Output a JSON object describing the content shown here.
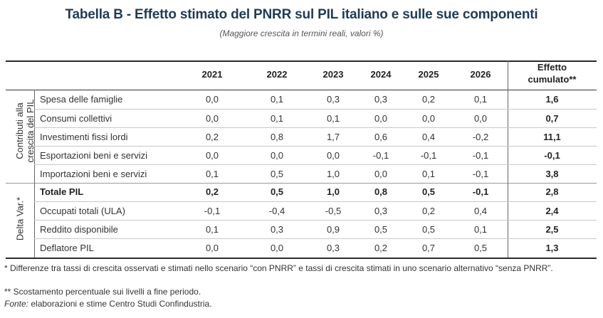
{
  "title": "Tabella B - Effetto stimato del PNRR sul PIL italiano e sulle sue componenti",
  "subtitle": "(Maggiore crescita in termini reali, valori %)",
  "columns": [
    "2021",
    "2022",
    "2023",
    "2024",
    "2025",
    "2026"
  ],
  "effect_header_line1": "Effetto",
  "effect_header_line2": "cumulato**",
  "side_labels": {
    "group1_line1": "Contributi alla",
    "group1_line2": "crescita del PIL",
    "group2": "Delta Var.*"
  },
  "rows": [
    {
      "label": "Spesa delle famiglie",
      "values": [
        "0,0",
        "0,1",
        "0,3",
        "0,3",
        "0,2",
        "0,1"
      ],
      "effect": "1,6",
      "bold": false
    },
    {
      "label": "Consumi collettivi",
      "values": [
        "0,0",
        "0,1",
        "0,1",
        "0,0",
        "0,0",
        "0,0"
      ],
      "effect": "0,7",
      "bold": false
    },
    {
      "label": "Investimenti fissi lordi",
      "values": [
        "0,2",
        "0,8",
        "1,7",
        "0,6",
        "0,4",
        "-0,2"
      ],
      "effect": "11,1",
      "bold": false
    },
    {
      "label": "Esportazioni beni e servizi",
      "values": [
        "0,0",
        "0,0",
        "0,0",
        "-0,1",
        "-0,1",
        "-0,1"
      ],
      "effect": "-0,1",
      "bold": false
    },
    {
      "label": "Importazioni beni e servizi",
      "values": [
        "0,1",
        "0,5",
        "1,0",
        "0,0",
        "0,1",
        "-0,1"
      ],
      "effect": "3,8",
      "bold": false
    },
    {
      "label": "Totale PIL",
      "values": [
        "0,2",
        "0,5",
        "1,0",
        "0,8",
        "0,5",
        "-0,1"
      ],
      "effect": "2,8",
      "bold": true
    },
    {
      "label": "Occupati totali (ULA)",
      "values": [
        "-0,1",
        "-0,4",
        "-0,5",
        "0,3",
        "0,2",
        "0,4"
      ],
      "effect": "2,4",
      "bold": false
    },
    {
      "label": "Reddito disponibile",
      "values": [
        "0,1",
        "0,3",
        "0,9",
        "0,5",
        "0,5",
        "0,1"
      ],
      "effect": "2,5",
      "bold": false
    },
    {
      "label": "Deflatore PIL",
      "values": [
        "0,0",
        "0,0",
        "0,3",
        "0,2",
        "0,7",
        "0,5"
      ],
      "effect": "1,3",
      "bold": false
    }
  ],
  "notes": {
    "note1": "* Differenze tra tassi di crescita osservati e stimati nello scenario “con PNRR” e tassi di crescita stimati in uno scenario alternativo “senza PNRR”.",
    "note2": "** Scostamento percentuale sui livelli a fine periodo.",
    "source_label": "Fonte:",
    "source_text": " elaborazioni e stime Centro Studi Confindustria."
  }
}
